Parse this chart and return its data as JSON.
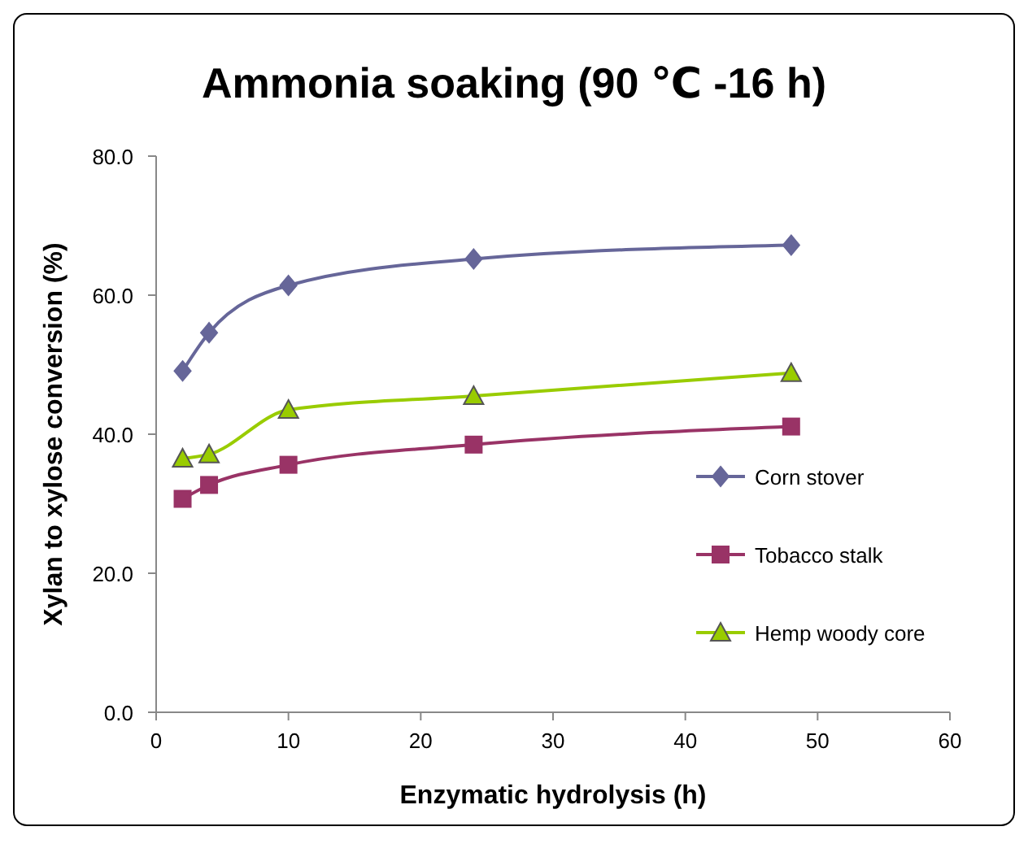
{
  "chart_data": {
    "type": "line",
    "title": "Ammonia soaking (90 ℃ -16 h)",
    "xlabel": "Enzymatic hydrolysis (h)",
    "ylabel": "Xylan to xylose conversion (%)",
    "x": [
      2,
      4,
      10,
      24,
      48
    ],
    "series": [
      {
        "name": "Corn stover",
        "color": "#666699",
        "marker": "diamond",
        "values": [
          49.1,
          54.6,
          61.4,
          65.2,
          67.2
        ]
      },
      {
        "name": "Tobacco stalk",
        "color": "#993366",
        "marker": "square",
        "values": [
          30.7,
          32.7,
          35.6,
          38.5,
          41.1
        ]
      },
      {
        "name": "Hemp woody core",
        "color": "#99cc00",
        "marker": "triangle",
        "values": [
          36.5,
          37.1,
          43.5,
          45.5,
          48.8
        ]
      }
    ],
    "xlim": [
      0,
      60
    ],
    "xticks": [
      0,
      10,
      20,
      30,
      40,
      50,
      60
    ],
    "ylim": [
      0,
      80
    ],
    "yticks": [
      {
        "value": 0,
        "label": "0.0"
      },
      {
        "value": 20,
        "label": "20.0"
      },
      {
        "value": 40,
        "label": "40.0"
      },
      {
        "value": 60,
        "label": "60.0"
      },
      {
        "value": 80,
        "label": "80.0"
      }
    ],
    "grid": false,
    "legend": "right",
    "line_style": "solid"
  }
}
